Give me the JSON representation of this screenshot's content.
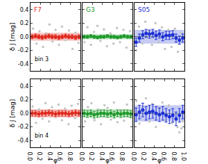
{
  "chart_data": [
    {
      "type": "scatter",
      "ylabel": "δ J [mag]",
      "annotation": "bin 3",
      "tick_labels": "y",
      "xlim": [
        0,
        1
      ],
      "ylim": [
        -0.5,
        0.5
      ],
      "xticks": [
        {
          "value": 0,
          "label": "0.0"
        },
        0.2,
        0.4,
        0.6,
        0.8
      ],
      "yticks": [
        -0.4,
        -0.2,
        {
          "value": 0,
          "label": "0.0"
        },
        0.2,
        0.4
      ],
      "band": {
        "lower": -0.06,
        "upper": 0.06
      },
      "series": [
        {
          "color": "#c4c4c4",
          "marker": "dot",
          "x": [
            0.05,
            0.12,
            0.18,
            0.25,
            0.31,
            0.38,
            0.44,
            0.5,
            0.57,
            0.63,
            0.7,
            0.77,
            0.84,
            0.9,
            0.96
          ],
          "values": [
            0.12,
            -0.1,
            0.08,
            -0.15,
            0.05,
            0.18,
            -0.07,
            0.1,
            -0.12,
            0.15,
            -0.05,
            0.09,
            -0.18,
            0.06,
            -0.09
          ]
        },
        {
          "name": "F7",
          "color": "#e0281c",
          "marker": "circle",
          "x": [
            0.033,
            0.1,
            0.167,
            0.233,
            0.3,
            0.367,
            0.433,
            0.5,
            0.567,
            0.633,
            0.7,
            0.767,
            0.833,
            0.9,
            0.967
          ],
          "values": [
            0.0,
            0.01,
            0.0,
            -0.01,
            0.0,
            0.01,
            0.0,
            0.0,
            -0.01,
            0.0,
            0.01,
            0.0,
            0.0,
            -0.01,
            0.0
          ],
          "errors": [
            0.03,
            0.03,
            0.03,
            0.03,
            0.03,
            0.03,
            0.03,
            0.03,
            0.03,
            0.03,
            0.03,
            0.03,
            0.03,
            0.03,
            0.03
          ]
        }
      ]
    },
    {
      "type": "scatter",
      "tick_labels": false,
      "xlim": [
        0,
        1
      ],
      "ylim": [
        -0.5,
        0.5
      ],
      "xticks": [
        {
          "value": 0,
          "label": "0.0"
        },
        0.2,
        0.4,
        0.6,
        0.8
      ],
      "yticks": [
        -0.4,
        -0.2,
        {
          "value": 0,
          "label": "0.0"
        },
        0.2,
        0.4
      ],
      "band": {
        "lower": -0.04,
        "upper": 0.04
      },
      "series": [
        {
          "color": "#c4c4c4",
          "marker": "dot",
          "x": [
            0.04,
            0.1,
            0.17,
            0.23,
            0.3,
            0.36,
            0.43,
            0.49,
            0.56,
            0.62,
            0.69,
            0.75,
            0.82,
            0.88,
            0.95
          ],
          "values": [
            -0.08,
            0.14,
            -0.12,
            0.07,
            0.16,
            -0.06,
            0.11,
            -0.14,
            0.05,
            -0.1,
            0.13,
            -0.08,
            0.1,
            -0.16,
            0.08
          ]
        },
        {
          "name": "G3",
          "color": "#1e9a2a",
          "marker": "circle",
          "x": [
            0.033,
            0.1,
            0.167,
            0.233,
            0.3,
            0.367,
            0.433,
            0.5,
            0.567,
            0.633,
            0.7,
            0.767,
            0.833,
            0.9,
            0.967
          ],
          "values": [
            0.0,
            0.0,
            0.01,
            0.0,
            -0.01,
            0.0,
            0.0,
            0.01,
            0.0,
            0.0,
            -0.01,
            0.0,
            0.01,
            0.0,
            0.0
          ],
          "errors": [
            0.02,
            0.02,
            0.02,
            0.02,
            0.02,
            0.02,
            0.02,
            0.02,
            0.02,
            0.02,
            0.02,
            0.02,
            0.02,
            0.02,
            0.02
          ]
        }
      ]
    },
    {
      "type": "scatter",
      "tick_labels": false,
      "xlim": [
        0,
        1
      ],
      "ylim": [
        -0.5,
        0.5
      ],
      "xticks": [
        {
          "value": 0,
          "label": "0.0"
        },
        0.2,
        0.4,
        0.6,
        0.8,
        {
          "value": 1,
          "label": "1.0"
        }
      ],
      "yticks": [
        -0.4,
        -0.2,
        {
          "value": 0,
          "label": "0.0"
        },
        0.2,
        0.4
      ],
      "band": {
        "lower": -0.1,
        "upper": 0.1
      },
      "series": [
        {
          "color": "#c4c4c4",
          "marker": "dot",
          "x": [
            0.03,
            0.09,
            0.16,
            0.22,
            0.29,
            0.35,
            0.42,
            0.48,
            0.55,
            0.61,
            0.68,
            0.74,
            0.81,
            0.87,
            0.94
          ],
          "values": [
            -0.2,
            0.15,
            -0.1,
            0.22,
            0.08,
            -0.12,
            0.2,
            -0.08,
            0.14,
            -0.18,
            0.1,
            -0.15,
            0.12,
            -0.22,
            0.05
          ]
        },
        {
          "name": "S05",
          "color": "#1c30d4",
          "marker": "circle",
          "x": [
            0.033,
            0.1,
            0.167,
            0.233,
            0.3,
            0.367,
            0.433,
            0.5,
            0.567,
            0.633,
            0.7,
            0.767,
            0.833,
            0.9,
            0.967
          ],
          "values": [
            -0.08,
            -0.02,
            0.03,
            0.05,
            0.04,
            0.05,
            0.02,
            0.04,
            0.0,
            0.02,
            0.02,
            0.03,
            -0.02,
            -0.05,
            -0.02
          ],
          "errors": [
            0.06,
            0.06,
            0.06,
            0.06,
            0.06,
            0.06,
            0.06,
            0.06,
            0.06,
            0.06,
            0.06,
            0.06,
            0.06,
            0.06,
            0.06
          ]
        }
      ]
    },
    {
      "type": "scatter",
      "ylabel": "δ J [mag]",
      "xlabel": "φ",
      "annotation": "bin 4",
      "tick_labels": true,
      "xlim": [
        0,
        1
      ],
      "ylim": [
        -0.5,
        0.5
      ],
      "xticks": [
        {
          "value": 0,
          "label": "0.0"
        },
        0.2,
        0.4,
        0.6,
        0.8
      ],
      "yticks": [
        -0.4,
        -0.2,
        {
          "value": 0,
          "label": "0.0"
        },
        0.2,
        0.4
      ],
      "band": {
        "lower": -0.06,
        "upper": 0.06
      },
      "series": [
        {
          "color": "#c4c4c4",
          "marker": "dot",
          "x": [
            0.04,
            0.11,
            0.17,
            0.24,
            0.3,
            0.37,
            0.43,
            0.5,
            0.56,
            0.63,
            0.69,
            0.76,
            0.82,
            0.89,
            0.95
          ],
          "values": [
            0.1,
            -0.14,
            0.06,
            -0.08,
            0.15,
            -0.12,
            0.09,
            -0.05,
            0.13,
            -0.1,
            0.07,
            -0.16,
            0.11,
            -0.07,
            0.14
          ]
        },
        {
          "color": "#e0281c",
          "marker": "circle",
          "x": [
            0.033,
            0.1,
            0.167,
            0.233,
            0.3,
            0.367,
            0.433,
            0.5,
            0.567,
            0.633,
            0.7,
            0.767,
            0.833,
            0.9,
            0.967
          ],
          "values": [
            0.0,
            0.0,
            -0.01,
            0.0,
            0.0,
            0.01,
            0.0,
            -0.01,
            0.0,
            0.0,
            0.0,
            -0.01,
            0.0,
            0.01,
            0.0
          ],
          "errors": [
            0.04,
            0.04,
            0.04,
            0.04,
            0.04,
            0.04,
            0.04,
            0.04,
            0.04,
            0.04,
            0.04,
            0.04,
            0.04,
            0.04,
            0.04
          ]
        }
      ]
    },
    {
      "type": "scatter",
      "xlabel": "φ",
      "tick_labels": "x",
      "xlim": [
        0,
        1
      ],
      "ylim": [
        -0.5,
        0.5
      ],
      "xticks": [
        {
          "value": 0,
          "label": "0.0"
        },
        0.2,
        0.4,
        0.6,
        0.8
      ],
      "yticks": [
        -0.4,
        -0.2,
        {
          "value": 0,
          "label": "0.0"
        },
        0.2,
        0.4
      ],
      "band": {
        "lower": -0.06,
        "upper": 0.06
      },
      "series": [
        {
          "color": "#c4c4c4",
          "marker": "dot",
          "x": [
            0.05,
            0.11,
            0.18,
            0.24,
            0.31,
            0.37,
            0.44,
            0.5,
            0.57,
            0.63,
            0.7,
            0.76,
            0.83,
            0.89,
            0.96
          ],
          "values": [
            -0.12,
            0.09,
            0.15,
            -0.1,
            0.06,
            -0.16,
            0.12,
            0.08,
            -0.09,
            0.16,
            -0.13,
            0.05,
            -0.11,
            0.13,
            -0.06
          ]
        },
        {
          "color": "#1e9a2a",
          "marker": "circle",
          "x": [
            0.033,
            0.1,
            0.167,
            0.233,
            0.3,
            0.367,
            0.433,
            0.5,
            0.567,
            0.633,
            0.7,
            0.767,
            0.833,
            0.9,
            0.967
          ],
          "values": [
            0.0,
            -0.01,
            0.0,
            -0.02,
            -0.01,
            0.0,
            0.0,
            -0.01,
            0.0,
            -0.02,
            0.0,
            -0.01,
            0.0,
            0.0,
            -0.01
          ],
          "errors": [
            0.05,
            0.05,
            0.05,
            0.05,
            0.05,
            0.05,
            0.05,
            0.05,
            0.05,
            0.05,
            0.05,
            0.05,
            0.05,
            0.05,
            0.05
          ]
        }
      ]
    },
    {
      "type": "scatter",
      "xlabel": "φ",
      "tick_labels": "x",
      "xlim": [
        0,
        1
      ],
      "ylim": [
        -0.5,
        0.5
      ],
      "xticks": [
        {
          "value": 0,
          "label": "0.0"
        },
        0.2,
        0.4,
        0.6,
        0.8,
        {
          "value": 1,
          "label": "1.0"
        }
      ],
      "yticks": [
        -0.4,
        -0.2,
        {
          "value": 0,
          "label": "0.0"
        },
        0.2,
        0.4
      ],
      "band": {
        "lower": -0.12,
        "upper": 0.12
      },
      "series": [
        {
          "color": "#c4c4c4",
          "marker": "dot",
          "x": [
            0.04,
            0.1,
            0.17,
            0.23,
            0.3,
            0.36,
            0.43,
            0.49,
            0.56,
            0.62,
            0.69,
            0.75,
            0.82,
            0.86,
            0.9,
            0.94,
            0.97
          ],
          "values": [
            0.18,
            -0.15,
            0.1,
            0.22,
            -0.12,
            0.14,
            -0.2,
            0.08,
            0.16,
            -0.1,
            0.12,
            -0.14,
            -0.1,
            -0.2,
            -0.28,
            -0.22,
            -0.12
          ]
        },
        {
          "color": "#1c30d4",
          "marker": "circle",
          "x": [
            0.033,
            0.1,
            0.167,
            0.233,
            0.3,
            0.367,
            0.433,
            0.5,
            0.567,
            0.633,
            0.7,
            0.767,
            0.833,
            0.9,
            0.967
          ],
          "values": [
            -0.02,
            0.02,
            0.05,
            0.0,
            0.02,
            0.03,
            0.0,
            -0.02,
            0.0,
            -0.03,
            -0.05,
            -0.03,
            -0.08,
            -0.03,
            0.02
          ],
          "errors": [
            0.1,
            0.1,
            0.1,
            0.1,
            0.1,
            0.1,
            0.1,
            0.1,
            0.1,
            0.1,
            0.1,
            0.1,
            0.1,
            0.1,
            0.1
          ]
        }
      ]
    }
  ]
}
